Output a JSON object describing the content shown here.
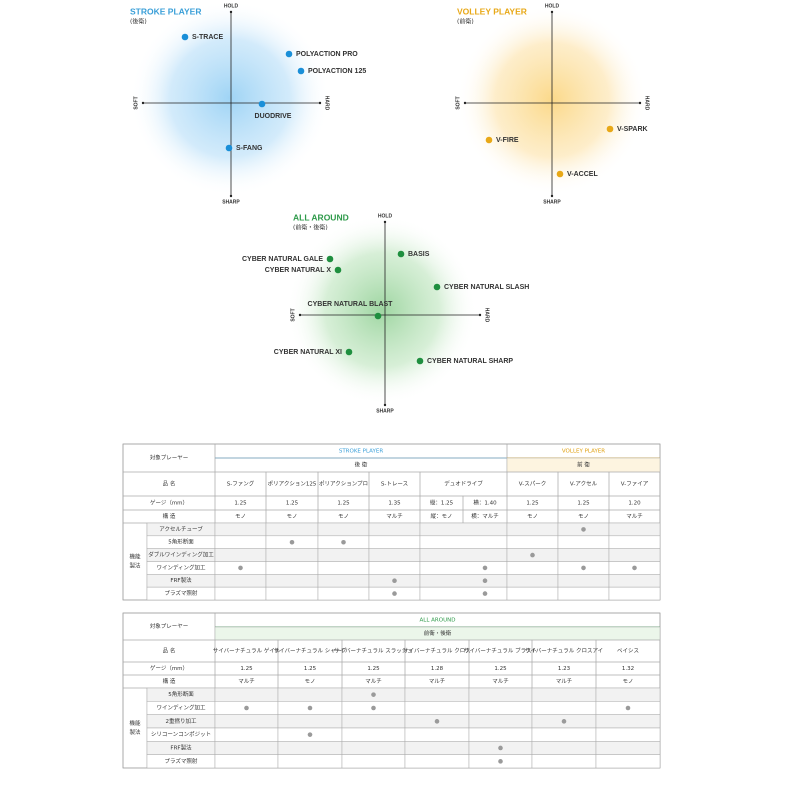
{
  "maps": [
    {
      "title": "STROKE PLAYER",
      "subtitle": "(後衛)",
      "axes": {
        "top": "HOLD",
        "bottom": "SHARP",
        "left": "SOFT",
        "right": "HARD"
      },
      "products": [
        "S-TRACE",
        "POLYACTION PRO",
        "POLYACTION 125",
        "DUODRIVE",
        "S-FANG"
      ]
    },
    {
      "title": "VOLLEY PLAYER",
      "subtitle": "(前衛)",
      "axes": {
        "top": "HOLD",
        "bottom": "SHARP",
        "left": "SOFT",
        "right": "HARD"
      },
      "products": [
        "V-FIRE",
        "V-SPARK",
        "V-ACCEL"
      ]
    },
    {
      "title": "ALL AROUND",
      "subtitle": "(前衛・後衛)",
      "axes": {
        "top": "HOLD",
        "bottom": "SHARP",
        "left": "SOFT",
        "right": "HARD"
      },
      "products": [
        "BASIS",
        "CYBER NATURAL GALE",
        "CYBER NATURAL X",
        "CYBER NATURAL SLASH",
        "CYBER NATURAL BLAST",
        "CYBER NATURAL XI",
        "CYBER NATURAL SHARP"
      ]
    }
  ],
  "tables": [
    {
      "player_label": "対象プレーヤー",
      "groups": [
        {
          "name": "STROKE PLAYER",
          "position": "後 衛"
        },
        {
          "name": "VOLLEY PLAYER",
          "position": "前 衛"
        }
      ],
      "name_label": "品 名",
      "gauge_label": "ゲージ（mm）",
      "structure_label": "構 造",
      "feature_label": [
        "機能",
        "製法"
      ],
      "products": [
        "S-ファング",
        "ポリアクション125",
        "ポリアクションプロ",
        "S-トレース",
        "デュオドライブ",
        "V-スパーク",
        "V-アクセル",
        "V-ファイア"
      ],
      "gauge": [
        "1.25",
        "1.25",
        "1.25",
        "1.35",
        [
          "縦：1.25",
          "横：1.40"
        ],
        "1.25",
        "1.25",
        "1.20"
      ],
      "structure": [
        "モノ",
        "モノ",
        "モノ",
        "マルチ",
        [
          "縦：モノ",
          "横：マルチ"
        ],
        "モノ",
        "モノ",
        "マルチ"
      ],
      "features": [
        {
          "name": "アクセルチューブ",
          "marks": [
            false,
            false,
            false,
            false,
            false,
            false,
            true,
            false
          ]
        },
        {
          "name": "5角形断面",
          "marks": [
            false,
            true,
            true,
            false,
            false,
            false,
            false,
            false
          ]
        },
        {
          "name": "ダブルワインディング加工",
          "marks": [
            false,
            false,
            false,
            false,
            false,
            true,
            false,
            false
          ]
        },
        {
          "name": "ワインディング加工",
          "marks": [
            true,
            false,
            false,
            false,
            true,
            false,
            true,
            true
          ]
        },
        {
          "name": "FRF製法",
          "marks": [
            false,
            false,
            false,
            true,
            true,
            false,
            false,
            false
          ]
        },
        {
          "name": "プラズマ照射",
          "marks": [
            false,
            false,
            false,
            true,
            true,
            false,
            false,
            false
          ]
        }
      ]
    },
    {
      "player_label": "対象プレーヤー",
      "groups": [
        {
          "name": "ALL AROUND",
          "position": "前衛・後衛"
        }
      ],
      "name_label": "品 名",
      "gauge_label": "ゲージ（mm）",
      "structure_label": "構 造",
      "feature_label": [
        "機能",
        "製法"
      ],
      "products": [
        "サイバーナチュラル ゲイル",
        "サイバーナチュラル シャープ",
        "サイバーナチュラル スラッシュ",
        "サイバーナチュラル クロス",
        "サイバーナチュラル ブラスト",
        "サイバーナチュラル クロスアイ",
        "ベイシス"
      ],
      "gauge": [
        "1.25",
        "1.25",
        "1.25",
        "1.28",
        "1.25",
        "1.23",
        "1.32"
      ],
      "structure": [
        "マルチ",
        "モノ",
        "マルチ",
        "マルチ",
        "マルチ",
        "マルチ",
        "モノ"
      ],
      "features": [
        {
          "name": "5角形断面",
          "marks": [
            false,
            false,
            true,
            false,
            false,
            false,
            false
          ]
        },
        {
          "name": "ワインディング加工",
          "marks": [
            true,
            true,
            true,
            false,
            false,
            false,
            true
          ]
        },
        {
          "name": "2重撚り加工",
          "marks": [
            false,
            false,
            false,
            true,
            false,
            true,
            false
          ]
        },
        {
          "name": "シリコーンコンポジット",
          "marks": [
            false,
            true,
            false,
            false,
            false,
            false,
            false
          ]
        },
        {
          "name": "FRF製法",
          "marks": [
            false,
            false,
            false,
            false,
            true,
            false,
            false
          ]
        },
        {
          "name": "プラズマ照射",
          "marks": [
            false,
            false,
            false,
            false,
            true,
            false,
            false
          ]
        }
      ]
    }
  ]
}
